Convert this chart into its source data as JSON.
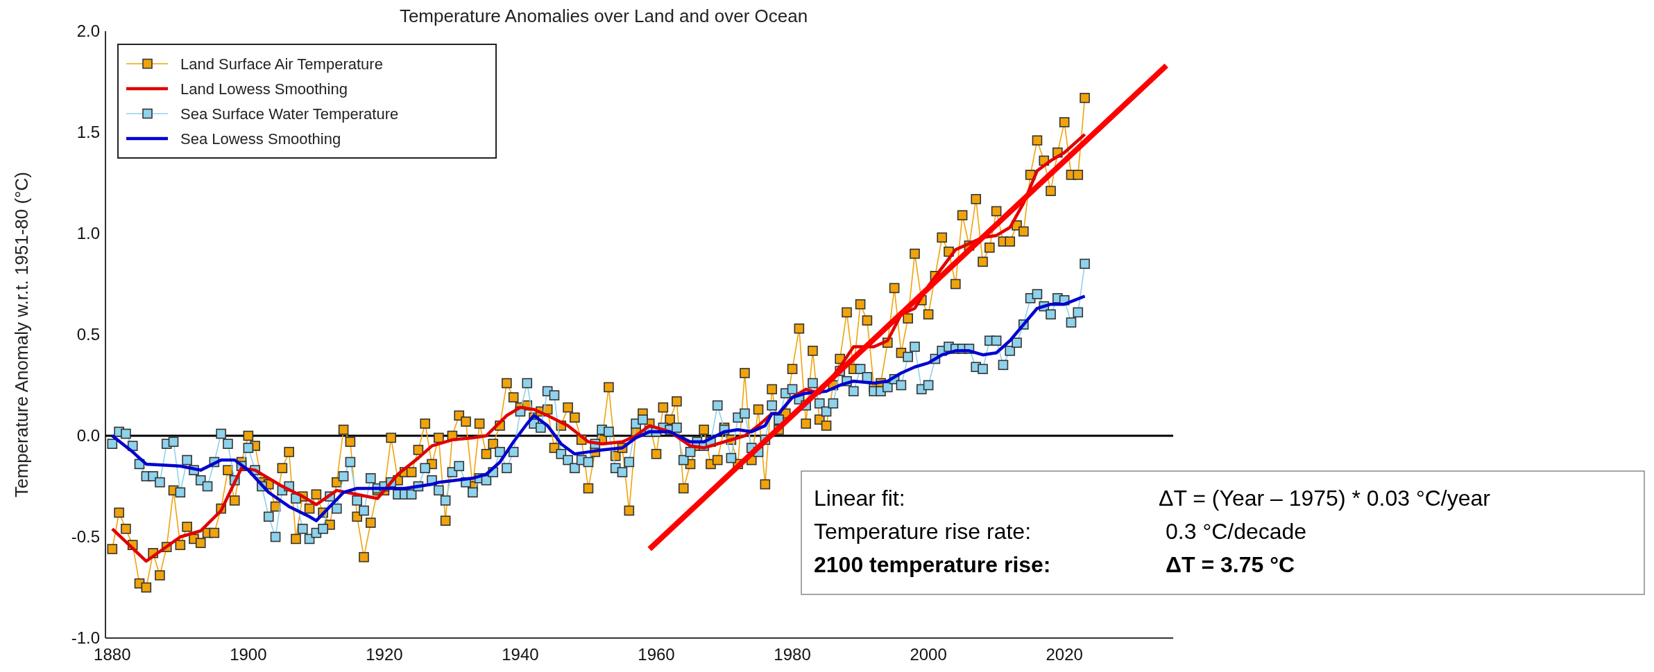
{
  "chart_data": {
    "type": "line",
    "title": "Temperature Anomalies over Land and over Ocean",
    "ylabel": "Temperature Anomaly w.r.t. 1951-80 (°C)",
    "x": [
      1880,
      1881,
      1882,
      1883,
      1884,
      1885,
      1886,
      1887,
      1888,
      1889,
      1890,
      1891,
      1892,
      1893,
      1894,
      1895,
      1896,
      1897,
      1898,
      1899,
      1900,
      1901,
      1902,
      1903,
      1904,
      1905,
      1906,
      1907,
      1908,
      1909,
      1910,
      1911,
      1912,
      1913,
      1914,
      1915,
      1916,
      1917,
      1918,
      1919,
      1920,
      1921,
      1922,
      1923,
      1924,
      1925,
      1926,
      1927,
      1928,
      1929,
      1930,
      1931,
      1932,
      1933,
      1934,
      1935,
      1936,
      1937,
      1938,
      1939,
      1940,
      1941,
      1942,
      1943,
      1944,
      1945,
      1946,
      1947,
      1948,
      1949,
      1950,
      1951,
      1952,
      1953,
      1954,
      1955,
      1956,
      1957,
      1958,
      1959,
      1960,
      1961,
      1962,
      1963,
      1964,
      1965,
      1966,
      1967,
      1968,
      1969,
      1970,
      1971,
      1972,
      1973,
      1974,
      1975,
      1976,
      1977,
      1978,
      1979,
      1980,
      1981,
      1982,
      1983,
      1984,
      1985,
      1986,
      1987,
      1988,
      1989,
      1990,
      1991,
      1992,
      1993,
      1994,
      1995,
      1996,
      1997,
      1998,
      1999,
      2000,
      2001,
      2002,
      2003,
      2004,
      2005,
      2006,
      2007,
      2008,
      2009,
      2010,
      2011,
      2012,
      2013,
      2014,
      2015,
      2016,
      2017,
      2018,
      2019,
      2020,
      2021,
      2022,
      2023
    ],
    "series": [
      {
        "name": "Land Surface Air Temperature",
        "color": "#f0a30a",
        "marker": "square",
        "values": [
          -0.56,
          -0.38,
          -0.46,
          -0.54,
          -0.73,
          -0.75,
          -0.58,
          -0.69,
          -0.55,
          -0.27,
          -0.54,
          -0.45,
          -0.51,
          -0.53,
          -0.48,
          -0.48,
          -0.36,
          -0.17,
          -0.32,
          -0.13,
          0.0,
          -0.05,
          -0.23,
          -0.24,
          -0.35,
          -0.16,
          -0.08,
          -0.51,
          -0.3,
          -0.36,
          -0.29,
          -0.38,
          -0.44,
          -0.23,
          0.03,
          -0.03,
          -0.4,
          -0.6,
          -0.43,
          -0.27,
          -0.27,
          -0.01,
          -0.22,
          -0.18,
          -0.18,
          -0.07,
          0.06,
          -0.14,
          -0.01,
          -0.42,
          0.0,
          0.1,
          0.07,
          -0.25,
          0.06,
          -0.09,
          -0.04,
          0.05,
          0.26,
          0.19,
          0.14,
          0.15,
          0.09,
          0.12,
          0.13,
          -0.06,
          0.05,
          0.14,
          0.09,
          -0.02,
          -0.26,
          -0.08,
          -0.02,
          0.24,
          -0.1,
          -0.06,
          -0.37,
          0.02,
          0.11,
          0.06,
          -0.09,
          0.14,
          0.08,
          0.17,
          -0.26,
          -0.14,
          -0.05,
          0.03,
          -0.14,
          -0.12,
          0.04,
          -0.02,
          -0.14,
          0.31,
          -0.12,
          0.13,
          -0.24,
          0.23,
          0.03,
          0.11,
          0.33,
          0.53,
          0.06,
          0.42,
          0.08,
          0.05,
          0.25,
          0.38,
          0.61,
          0.33,
          0.65,
          0.57,
          0.24,
          0.26,
          0.46,
          0.73,
          0.41,
          0.58,
          0.9,
          0.67,
          0.6,
          0.79,
          0.98,
          0.91,
          0.75,
          1.09,
          0.94,
          1.17,
          0.86,
          0.93,
          1.11,
          0.96,
          0.96,
          1.04,
          1.01,
          1.29,
          1.46,
          1.36,
          1.21,
          1.4,
          1.55,
          1.29,
          1.29,
          1.67
        ]
      },
      {
        "name": "Land Lowess Smoothing",
        "color": "#e00000",
        "marker": "none",
        "x": [
          1880,
          1885,
          1890,
          1893,
          1896,
          1899,
          1901,
          1905,
          1908,
          1910,
          1913,
          1916,
          1919,
          1922,
          1925,
          1927,
          1930,
          1933,
          1935,
          1938,
          1940,
          1942,
          1944,
          1947,
          1950,
          1952,
          1955,
          1957,
          1959,
          1962,
          1965,
          1967,
          1970,
          1973,
          1975,
          1977,
          1978,
          1980,
          1982,
          1984,
          1987,
          1989,
          1992,
          1994,
          1996,
          1998,
          2000,
          2002,
          2004,
          2006,
          2008,
          2010,
          2012,
          2014,
          2016,
          2018,
          2020,
          2023
        ],
        "values": [
          -0.46,
          -0.62,
          -0.5,
          -0.47,
          -0.37,
          -0.16,
          -0.17,
          -0.25,
          -0.3,
          -0.34,
          -0.27,
          -0.29,
          -0.31,
          -0.19,
          -0.11,
          -0.05,
          -0.02,
          -0.01,
          0.0,
          0.1,
          0.14,
          0.13,
          0.1,
          0.05,
          -0.03,
          -0.04,
          -0.03,
          0.0,
          0.05,
          0.02,
          -0.05,
          -0.06,
          -0.03,
          0.0,
          0.05,
          0.11,
          0.11,
          0.19,
          0.23,
          0.21,
          0.34,
          0.44,
          0.44,
          0.47,
          0.6,
          0.63,
          0.74,
          0.83,
          0.92,
          0.95,
          0.98,
          0.99,
          1.03,
          1.15,
          1.31,
          1.36,
          1.4,
          1.49
        ]
      },
      {
        "name": "Sea Surface Water Temperature",
        "color": "#8ed2ec",
        "marker": "square",
        "values": [
          -0.04,
          0.02,
          0.01,
          -0.05,
          -0.14,
          -0.2,
          -0.2,
          -0.23,
          -0.04,
          -0.03,
          -0.28,
          -0.12,
          -0.17,
          -0.22,
          -0.25,
          -0.13,
          0.01,
          -0.04,
          -0.22,
          -0.15,
          -0.06,
          -0.17,
          -0.25,
          -0.4,
          -0.5,
          -0.27,
          -0.25,
          -0.31,
          -0.46,
          -0.51,
          -0.48,
          -0.46,
          -0.3,
          -0.36,
          -0.2,
          -0.13,
          -0.32,
          -0.37,
          -0.21,
          -0.26,
          -0.25,
          -0.23,
          -0.29,
          -0.29,
          -0.29,
          -0.25,
          -0.16,
          -0.22,
          -0.27,
          -0.32,
          -0.18,
          -0.15,
          -0.23,
          -0.28,
          -0.21,
          -0.22,
          -0.18,
          -0.08,
          -0.16,
          -0.08,
          0.12,
          0.26,
          0.06,
          0.04,
          0.22,
          0.2,
          -0.09,
          -0.12,
          -0.16,
          -0.12,
          -0.13,
          -0.04,
          0.03,
          0.02,
          -0.16,
          -0.18,
          -0.13,
          0.06,
          0.08,
          0.02,
          0.02,
          0.04,
          0.03,
          0.04,
          -0.12,
          -0.08,
          -0.03,
          -0.05,
          -0.03,
          0.15,
          0.03,
          -0.11,
          0.09,
          0.11,
          -0.06,
          -0.08,
          -0.02,
          0.15,
          0.08,
          0.21,
          0.23,
          0.18,
          0.15,
          0.26,
          0.16,
          0.12,
          0.16,
          0.32,
          0.27,
          0.22,
          0.33,
          0.29,
          0.22,
          0.22,
          0.24,
          0.28,
          0.25,
          0.39,
          0.44,
          0.23,
          0.25,
          0.38,
          0.42,
          0.44,
          0.43,
          0.43,
          0.43,
          0.34,
          0.33,
          0.47,
          0.47,
          0.35,
          0.42,
          0.46,
          0.55,
          0.68,
          0.7,
          0.64,
          0.6,
          0.68,
          0.67,
          0.56,
          0.61,
          0.85
        ]
      },
      {
        "name": "Sea Lowess Smoothing",
        "color": "#0000d0",
        "marker": "none",
        "x": [
          1880,
          1883,
          1885,
          1890,
          1893,
          1896,
          1898,
          1900,
          1903,
          1906,
          1909,
          1910,
          1912,
          1914,
          1916,
          1920,
          1923,
          1925,
          1927,
          1928,
          1933,
          1935,
          1937,
          1939,
          1941,
          1942,
          1944,
          1946,
          1948,
          1950,
          1952,
          1955,
          1957,
          1959,
          1962,
          1965,
          1967,
          1970,
          1972,
          1974,
          1976,
          1977,
          1978,
          1980,
          1982,
          1985,
          1987,
          1989,
          1992,
          1994,
          1996,
          1998,
          2000,
          2002,
          2004,
          2006,
          2008,
          2010,
          2012,
          2014,
          2016,
          2018,
          2020,
          2023
        ],
        "values": [
          0.0,
          -0.08,
          -0.14,
          -0.15,
          -0.17,
          -0.12,
          -0.12,
          -0.17,
          -0.28,
          -0.35,
          -0.4,
          -0.42,
          -0.35,
          -0.28,
          -0.26,
          -0.26,
          -0.26,
          -0.25,
          -0.24,
          -0.23,
          -0.21,
          -0.19,
          -0.13,
          -0.03,
          0.06,
          0.1,
          0.05,
          -0.04,
          -0.09,
          -0.08,
          -0.07,
          -0.06,
          -0.01,
          0.02,
          0.02,
          -0.03,
          -0.03,
          0.02,
          0.03,
          0.02,
          0.05,
          0.11,
          0.11,
          0.19,
          0.21,
          0.22,
          0.25,
          0.27,
          0.26,
          0.27,
          0.31,
          0.34,
          0.36,
          0.4,
          0.42,
          0.42,
          0.4,
          0.41,
          0.47,
          0.55,
          0.63,
          0.65,
          0.65,
          0.69
        ]
      },
      {
        "color": "#ff0000",
        "marker": "none",
        "x": [
          1959,
          2035
        ],
        "values": [
          -0.56,
          1.83
        ]
      }
    ],
    "xlim": [
      1879,
      2036
    ],
    "xticks": [
      1880,
      1900,
      1920,
      1940,
      1960,
      1980,
      2000,
      2020
    ],
    "ylim": [
      -1,
      2
    ],
    "yticks": [
      {
        "value": -1,
        "label": "-1.0"
      },
      {
        "value": -0.5,
        "label": "-0.5"
      },
      {
        "value": 0,
        "label": "0.0"
      },
      {
        "value": 0.5,
        "label": "0.5"
      },
      {
        "value": 1,
        "label": "1.0"
      },
      {
        "value": 1.5,
        "label": "1.5"
      },
      {
        "value": 2,
        "label": "2.0"
      }
    ],
    "ref_lines": [
      {
        "axis": "y",
        "value": 0,
        "color": "#000000"
      }
    ],
    "legend": "top left",
    "grid": false,
    "annotations": [
      "Linear fit:",
      "ΔT = (Year – 1975) * 0.03 °C/year",
      "Temperature rise rate:",
      "0.3 °C/decade",
      "2100 temperature rise:",
      "ΔT = 3.75 °C"
    ]
  }
}
